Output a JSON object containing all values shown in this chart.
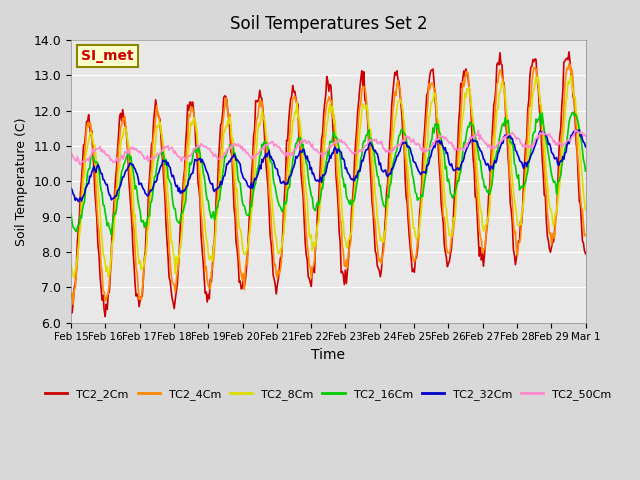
{
  "title": "Soil Temperatures Set 2",
  "xlabel": "Time",
  "ylabel": "Soil Temperature (C)",
  "ylim": [
    6.0,
    14.0
  ],
  "yticks": [
    6.0,
    7.0,
    8.0,
    9.0,
    10.0,
    11.0,
    12.0,
    13.0,
    14.0
  ],
  "series_colors": {
    "TC2_2Cm": "#cc0000",
    "TC2_4Cm": "#ff8800",
    "TC2_8Cm": "#dddd00",
    "TC2_16Cm": "#00cc00",
    "TC2_32Cm": "#0000cc",
    "TC2_50Cm": "#ff88cc"
  },
  "annotation_label": "SI_met",
  "annotation_color": "#cc0000",
  "annotation_bg": "#ffffcc",
  "annotation_border": "#888800",
  "xtick_labels": [
    "Feb 15",
    "Feb 16",
    "Feb 17",
    "Feb 18",
    "Feb 19",
    "Feb 20",
    "Feb 21",
    "Feb 22",
    "Feb 23",
    "Feb 24",
    "Feb 25",
    "Feb 26",
    "Feb 27",
    "Feb 28",
    "Feb 29",
    "Mar 1"
  ],
  "n_points": 500
}
